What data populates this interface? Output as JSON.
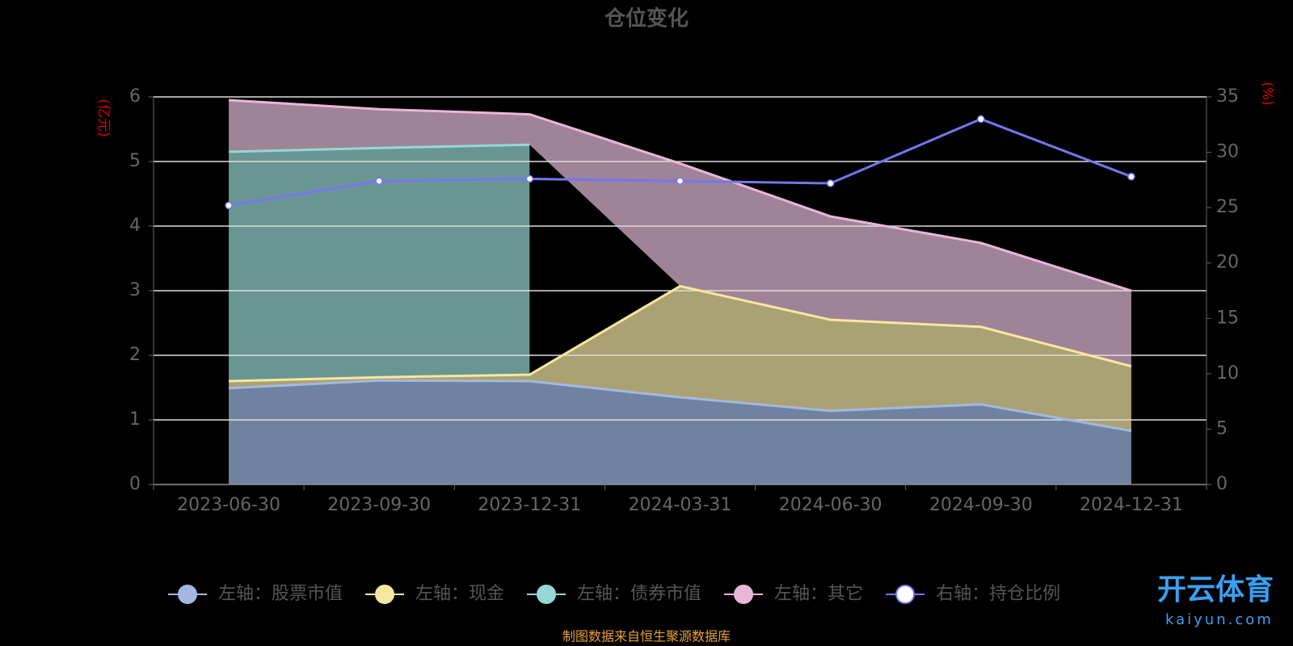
{
  "chart_data": {
    "type": "stacked-area-line",
    "title": "仓位变化",
    "y_label": "(亿元)",
    "y2_label": "(%)",
    "source": "制图数据来自恒生聚源数据库",
    "watermark": [
      "开云体育",
      "kaiyun.com"
    ],
    "categories": [
      "2023-06-30",
      "2023-09-30",
      "2023-12-31",
      "2024-03-31",
      "2024-06-30",
      "2024-09-30",
      "2024-12-31"
    ],
    "ylim": [
      0,
      6
    ],
    "yticks": [
      0,
      1,
      2,
      3,
      4,
      5,
      6
    ],
    "y2lim": [
      0,
      35
    ],
    "y2ticks": [
      0,
      5,
      10,
      15,
      20,
      25,
      30,
      35
    ],
    "grid": true,
    "legend": "bottom",
    "series": [
      {
        "name": "左轴：股票市值",
        "color": "#a3b8e0",
        "fill": "#6f83a0",
        "values": [
          1.49,
          1.61,
          1.6,
          1.35,
          1.14,
          1.24,
          0.83
        ]
      },
      {
        "name": "左轴：现金",
        "color": "#f6e7a0",
        "fill": "#aba273",
        "values": [
          0.11,
          0.05,
          0.1,
          1.72,
          1.41,
          1.2,
          1.0
        ]
      },
      {
        "name": "左轴：债券市值",
        "color": "#95d8d4",
        "fill": "#699693",
        "values": [
          3.55,
          3.55,
          3.56,
          null,
          null,
          null,
          null
        ]
      },
      {
        "name": "左轴：其它",
        "color": "#e9b6d6",
        "fill": "#9f8397",
        "values": [
          0.8,
          0.6,
          0.47,
          1.9,
          1.6,
          1.3,
          1.17
        ]
      },
      {
        "name": "右轴：持仓比例",
        "color": "#7376f0",
        "axis": "y2",
        "values": [
          25.2,
          27.4,
          27.6,
          27.4,
          27.2,
          33.0,
          27.8
        ]
      }
    ]
  }
}
